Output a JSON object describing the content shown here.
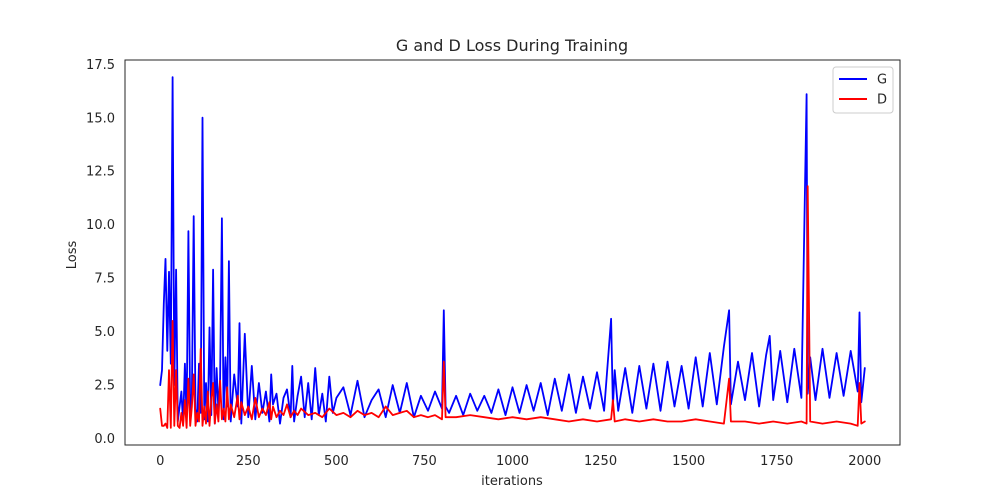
{
  "chart_data": {
    "type": "line",
    "title": "G and D Loss During Training",
    "xlabel": "iterations",
    "ylabel": "Loss",
    "xlim": [
      -100,
      2100
    ],
    "ylim": [
      -0.3,
      17.7
    ],
    "xticks": [
      0,
      250,
      500,
      750,
      1000,
      1250,
      1500,
      1750,
      2000
    ],
    "yticks": [
      0.0,
      2.5,
      5.0,
      7.5,
      10.0,
      12.5,
      15.0,
      17.5
    ],
    "xtick_labels": [
      "0",
      "250",
      "500",
      "750",
      "1000",
      "1250",
      "1500",
      "1750",
      "2000"
    ],
    "ytick_labels": [
      "0.0",
      "2.5",
      "5.0",
      "7.5",
      "10.0",
      "12.5",
      "15.0",
      "17.5"
    ],
    "grid": false,
    "legend_position": "top-right",
    "series": [
      {
        "name": "G",
        "color": "#0000ff",
        "x": [
          0,
          5,
          10,
          15,
          20,
          25,
          30,
          35,
          40,
          45,
          50,
          55,
          60,
          65,
          70,
          75,
          80,
          85,
          90,
          95,
          100,
          105,
          110,
          115,
          120,
          125,
          130,
          135,
          140,
          145,
          150,
          155,
          160,
          165,
          170,
          175,
          180,
          185,
          190,
          195,
          200,
          210,
          220,
          225,
          230,
          240,
          250,
          260,
          270,
          280,
          290,
          300,
          310,
          315,
          320,
          330,
          340,
          350,
          360,
          370,
          375,
          380,
          390,
          400,
          410,
          420,
          430,
          440,
          450,
          460,
          470,
          480,
          490,
          500,
          520,
          540,
          560,
          580,
          600,
          620,
          640,
          660,
          680,
          700,
          720,
          740,
          760,
          780,
          800,
          805,
          810,
          820,
          840,
          860,
          880,
          900,
          920,
          940,
          960,
          980,
          1000,
          1020,
          1040,
          1060,
          1080,
          1100,
          1120,
          1140,
          1160,
          1180,
          1200,
          1220,
          1240,
          1260,
          1280,
          1285,
          1290,
          1300,
          1320,
          1340,
          1360,
          1380,
          1400,
          1420,
          1440,
          1460,
          1480,
          1500,
          1520,
          1540,
          1560,
          1580,
          1600,
          1615,
          1620,
          1640,
          1660,
          1680,
          1700,
          1720,
          1730,
          1740,
          1760,
          1780,
          1800,
          1820,
          1835,
          1838,
          1845,
          1860,
          1880,
          1900,
          1920,
          1940,
          1960,
          1980,
          1985,
          1990,
          2000
        ],
        "y": [
          2.5,
          3.2,
          6.3,
          8.4,
          4.1,
          7.8,
          3.5,
          16.9,
          2.5,
          7.9,
          0.8,
          1.5,
          2.2,
          0.7,
          3.5,
          0.9,
          9.7,
          1.2,
          2.1,
          10.4,
          1.4,
          0.8,
          3.5,
          1.2,
          15.0,
          0.9,
          2.6,
          0.8,
          5.2,
          1.1,
          7.9,
          0.7,
          3.3,
          1.3,
          2.8,
          10.3,
          0.9,
          3.8,
          1.5,
          8.3,
          0.8,
          3.0,
          1.5,
          5.4,
          0.7,
          4.9,
          1.0,
          3.4,
          0.9,
          2.6,
          1.2,
          2.2,
          0.8,
          3.0,
          1.6,
          2.1,
          0.7,
          1.9,
          2.3,
          1.0,
          3.4,
          0.8,
          2.0,
          2.9,
          1.0,
          2.6,
          0.9,
          3.3,
          1.1,
          2.1,
          0.8,
          2.9,
          1.2,
          1.9,
          2.4,
          1.1,
          2.7,
          1.0,
          1.8,
          2.3,
          1.0,
          2.5,
          1.2,
          2.6,
          1.0,
          2.0,
          1.3,
          2.2,
          1.4,
          6.0,
          1.5,
          1.2,
          2.0,
          1.1,
          2.1,
          1.3,
          2.0,
          1.2,
          2.3,
          1.1,
          2.4,
          1.2,
          2.5,
          1.3,
          2.6,
          1.1,
          2.8,
          1.3,
          3.0,
          1.2,
          2.9,
          1.4,
          3.1,
          1.3,
          5.6,
          1.5,
          3.2,
          1.3,
          3.3,
          1.2,
          3.4,
          1.4,
          3.5,
          1.3,
          3.6,
          1.5,
          3.4,
          1.4,
          3.8,
          1.5,
          4.0,
          1.6,
          4.3,
          6.0,
          1.6,
          3.6,
          1.8,
          4.0,
          1.5,
          3.9,
          4.8,
          1.8,
          4.1,
          1.7,
          4.2,
          1.9,
          16.1,
          2.1,
          3.8,
          1.8,
          4.2,
          1.9,
          4.0,
          2.0,
          4.1,
          2.2,
          5.9,
          1.7,
          3.3
        ]
      },
      {
        "name": "D",
        "color": "#ff0000",
        "x": [
          0,
          5,
          10,
          15,
          20,
          25,
          30,
          35,
          40,
          45,
          50,
          55,
          60,
          65,
          70,
          75,
          80,
          85,
          90,
          95,
          100,
          105,
          110,
          115,
          120,
          125,
          130,
          135,
          140,
          145,
          150,
          155,
          160,
          165,
          170,
          175,
          180,
          185,
          190,
          195,
          200,
          210,
          220,
          225,
          230,
          240,
          250,
          260,
          270,
          280,
          290,
          300,
          310,
          315,
          320,
          330,
          340,
          350,
          360,
          370,
          380,
          390,
          400,
          420,
          440,
          460,
          480,
          500,
          520,
          540,
          560,
          580,
          600,
          620,
          640,
          660,
          680,
          700,
          720,
          740,
          760,
          780,
          800,
          805,
          810,
          840,
          880,
          920,
          960,
          1000,
          1040,
          1080,
          1120,
          1160,
          1200,
          1240,
          1280,
          1285,
          1290,
          1320,
          1360,
          1400,
          1440,
          1480,
          1520,
          1560,
          1600,
          1615,
          1620,
          1660,
          1700,
          1740,
          1780,
          1820,
          1835,
          1838,
          1845,
          1880,
          1920,
          1960,
          1980,
          1985,
          1990,
          2000
        ],
        "y": [
          1.4,
          0.6,
          0.6,
          0.7,
          0.5,
          3.2,
          0.5,
          5.5,
          0.6,
          3.2,
          0.6,
          0.5,
          1.2,
          0.6,
          1.8,
          0.5,
          2.8,
          0.6,
          1.5,
          3.0,
          0.6,
          1.2,
          0.8,
          4.2,
          0.6,
          1.5,
          0.7,
          2.2,
          0.6,
          1.8,
          2.6,
          0.7,
          1.6,
          0.8,
          2.7,
          0.9,
          1.4,
          0.8,
          2.4,
          0.9,
          1.6,
          1.0,
          2.0,
          0.9,
          1.7,
          1.1,
          1.5,
          0.9,
          1.9,
          1.0,
          1.4,
          1.1,
          1.7,
          0.9,
          1.5,
          1.0,
          1.3,
          1.1,
          1.6,
          1.0,
          1.3,
          1.1,
          1.4,
          1.1,
          1.2,
          1.0,
          1.4,
          1.1,
          1.2,
          1.0,
          1.3,
          1.1,
          1.2,
          1.0,
          1.5,
          1.1,
          1.2,
          1.3,
          1.0,
          1.1,
          1.0,
          1.1,
          0.9,
          3.6,
          1.0,
          1.0,
          1.1,
          1.0,
          0.9,
          1.0,
          0.9,
          1.0,
          0.9,
          0.8,
          0.9,
          0.8,
          0.9,
          1.8,
          0.8,
          0.9,
          0.8,
          0.9,
          0.8,
          0.8,
          0.9,
          0.8,
          0.7,
          2.8,
          0.8,
          0.8,
          0.7,
          0.8,
          0.7,
          0.8,
          0.7,
          11.8,
          0.8,
          0.7,
          0.8,
          0.7,
          0.6,
          2.6,
          0.7,
          0.8
        ]
      }
    ]
  }
}
